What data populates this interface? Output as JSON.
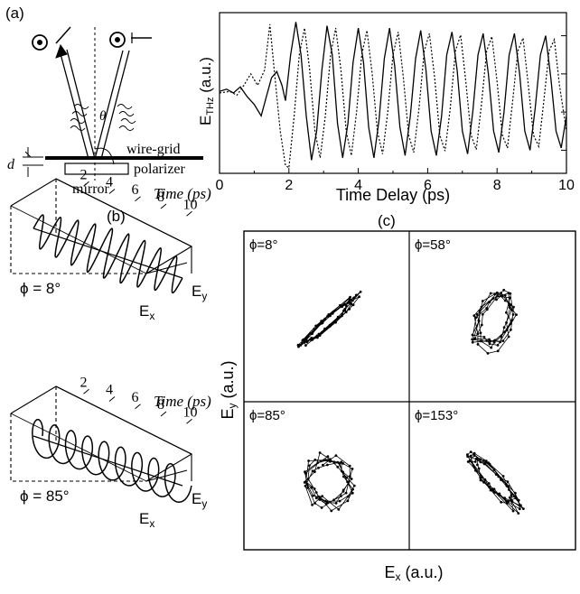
{
  "panel_labels": {
    "a": "(a)",
    "b": "(b)",
    "c": "(c)"
  },
  "schematic": {
    "label_wire_grid": "wire-grid",
    "label_polarizer": "polarizer",
    "label_mirror": "mirror",
    "label_d": "d",
    "label_theta": "θ"
  },
  "chart_data": [
    {
      "type": "line",
      "ylabel_main": "E",
      "ylabel_sub": "THz",
      "ylabel_rest": " (a.u.)",
      "xlabel": "Time Delay (ps)",
      "xlim": [
        0,
        10
      ],
      "x_ticks": [
        "0",
        "2",
        "4",
        "6",
        "8",
        "10"
      ],
      "series": [
        {
          "style": "solid",
          "x": [
            0,
            0.2,
            0.4,
            0.6,
            0.8,
            1.0,
            1.2,
            1.35,
            1.5,
            1.65,
            1.8,
            1.9,
            2.05,
            2.2,
            2.35,
            2.5,
            2.65,
            2.8,
            2.95,
            3.1,
            3.25,
            3.4,
            3.55,
            3.7,
            3.85,
            4.0,
            4.15,
            4.3,
            4.45,
            4.6,
            4.75,
            4.9,
            5.05,
            5.2,
            5.35,
            5.5,
            5.65,
            5.8,
            5.95,
            6.1,
            6.25,
            6.4,
            6.55,
            6.7,
            6.85,
            7.0,
            7.15,
            7.3,
            7.45,
            7.6,
            7.75,
            7.9,
            8.05,
            8.2,
            8.35,
            8.5,
            8.65,
            8.8,
            8.95,
            9.1,
            9.25,
            9.4,
            9.55,
            9.7,
            9.85,
            10.0
          ],
          "y": [
            0.02,
            0.05,
            0.0,
            0.08,
            -0.05,
            -0.15,
            -0.3,
            -0.05,
            0.2,
            0.28,
            0.1,
            -0.1,
            0.5,
            0.93,
            0.5,
            -0.3,
            -0.88,
            -0.5,
            0.3,
            0.88,
            0.5,
            -0.4,
            -0.85,
            -0.4,
            0.4,
            0.85,
            0.4,
            -0.45,
            -0.85,
            -0.35,
            0.45,
            0.85,
            0.35,
            -0.45,
            -0.82,
            -0.3,
            0.45,
            0.82,
            0.3,
            -0.5,
            -0.82,
            -0.3,
            0.5,
            0.8,
            0.3,
            -0.5,
            -0.8,
            -0.25,
            0.5,
            0.78,
            0.25,
            -0.5,
            -0.78,
            -0.25,
            0.5,
            0.78,
            0.25,
            -0.5,
            -0.75,
            -0.2,
            0.5,
            0.75,
            0.2,
            -0.5,
            -0.72,
            -0.3
          ]
        },
        {
          "style": "dotted",
          "x": [
            0,
            0.3,
            0.5,
            0.7,
            0.9,
            1.1,
            1.3,
            1.45,
            1.6,
            1.75,
            1.9,
            2.0,
            2.15,
            2.3,
            2.45,
            2.6,
            2.75,
            2.9,
            3.05,
            3.2,
            3.35,
            3.5,
            3.65,
            3.8,
            3.95,
            4.1,
            4.25,
            4.4,
            4.55,
            4.7,
            4.85,
            5.0,
            5.15,
            5.3,
            5.45,
            5.6,
            5.75,
            5.9,
            6.05,
            6.2,
            6.35,
            6.5,
            6.65,
            6.8,
            6.95,
            7.1,
            7.25,
            7.4,
            7.55,
            7.7,
            7.85,
            8.0,
            8.15,
            8.3,
            8.45,
            8.6,
            8.75,
            8.9,
            9.05,
            9.2,
            9.35,
            9.5,
            9.65,
            9.8,
            10.0
          ],
          "y": [
            0.0,
            0.02,
            -0.03,
            0.1,
            0.25,
            0.1,
            0.3,
            0.9,
            0.2,
            -0.5,
            -0.95,
            -0.98,
            -0.3,
            0.5,
            0.85,
            0.3,
            -0.5,
            -0.85,
            -0.3,
            0.5,
            0.85,
            0.3,
            -0.5,
            -0.82,
            -0.25,
            0.5,
            0.82,
            0.25,
            -0.5,
            -0.8,
            -0.25,
            0.5,
            0.8,
            0.2,
            -0.55,
            -0.78,
            -0.2,
            0.55,
            0.78,
            0.2,
            -0.55,
            -0.76,
            -0.2,
            0.55,
            0.76,
            0.15,
            -0.55,
            -0.74,
            -0.15,
            0.55,
            0.74,
            0.15,
            -0.55,
            -0.72,
            -0.1,
            0.55,
            0.72,
            0.1,
            -0.55,
            -0.7,
            -0.1,
            0.55,
            0.7,
            0.1,
            -0.5
          ]
        }
      ]
    },
    {
      "type": "scatter",
      "ylabel_main": "E",
      "ylabel_sub": "y",
      "ylabel_rest": " (a.u.)",
      "xlabel_main": "E",
      "xlabel_sub": "x",
      "xlabel_rest": " (a.u.)",
      "panels": [
        {
          "phi": "ϕ=8°",
          "shape": "linear",
          "angle": 42,
          "rx": 95,
          "ry": 12
        },
        {
          "phi": "ϕ=58°",
          "shape": "ellipse",
          "angle": 70,
          "rx": 72,
          "ry": 45
        },
        {
          "phi": "ϕ=85°",
          "shape": "circle",
          "angle": 80,
          "rx": 66,
          "ry": 58
        },
        {
          "phi": "ϕ=153°",
          "shape": "linear",
          "angle": -48,
          "rx": 90,
          "ry": 22
        }
      ]
    }
  ],
  "helix_panels": [
    {
      "time_label": "Time (ps)",
      "ticks": [
        "2",
        "4",
        "6",
        "8",
        "10"
      ],
      "phi_label": "ϕ = 8°",
      "ey": "E",
      "ey_sub": "y",
      "ex": "E",
      "ex_sub": "x"
    },
    {
      "time_label": "Time (ps)",
      "ticks": [
        "2",
        "4",
        "6",
        "8",
        "10"
      ],
      "phi_label": "ϕ = 85°",
      "ey": "E",
      "ey_sub": "y",
      "ex": "E",
      "ex_sub": "x"
    }
  ]
}
